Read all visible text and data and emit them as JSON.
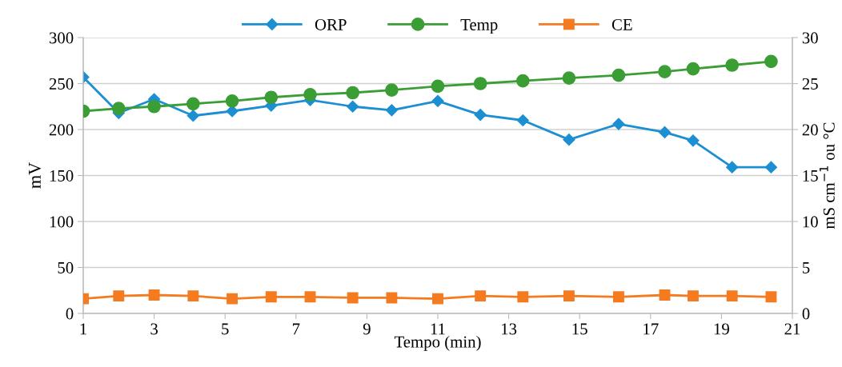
{
  "chart_data": {
    "type": "line",
    "xlabel": "Tempo (min)",
    "ylabel": "mV",
    "y2label": "mS cm$^{−1}$ ou °C",
    "x": [
      1,
      2,
      3,
      4.1,
      5.2,
      6.3,
      7.4,
      8.6,
      9.7,
      11,
      12.2,
      13.4,
      14.7,
      16.1,
      17.4,
      18.2,
      19.3,
      20.4
    ],
    "series": [
      {
        "name": "ORP",
        "color": "#1b8fd2",
        "marker": "diamond",
        "values": [
          257,
          218,
          233,
          215,
          220,
          226,
          232,
          225,
          221,
          231,
          216,
          210,
          189,
          206,
          197,
          188,
          159,
          159
        ]
      },
      {
        "name": "Temp",
        "color": "#3a9e35",
        "marker": "circle",
        "axis": "y2",
        "values": [
          22.0,
          22.3,
          22.5,
          22.8,
          23.1,
          23.5,
          23.8,
          24.0,
          24.3,
          24.7,
          25.0,
          25.3,
          25.6,
          25.9,
          26.3,
          26.6,
          27.0,
          27.4
        ]
      },
      {
        "name": "CE",
        "color": "#f47b20",
        "marker": "square",
        "axis": "y2",
        "values": [
          1.6,
          1.9,
          2.0,
          1.9,
          1.6,
          1.8,
          1.8,
          1.7,
          1.7,
          1.6,
          1.9,
          1.8,
          1.9,
          1.8,
          2.0,
          1.9,
          1.9,
          1.8
        ]
      }
    ],
    "xlim": [
      1,
      21
    ],
    "xticks": [
      1,
      3,
      5,
      7,
      9,
      11,
      13,
      15,
      17,
      19,
      21
    ],
    "ylim": [
      0,
      300
    ],
    "yticks": [
      0,
      50,
      100,
      150,
      200,
      250,
      300
    ],
    "y2lim": [
      0,
      30
    ],
    "y2ticks": [
      0,
      5,
      10,
      15,
      20,
      25,
      30
    ],
    "grid": "y",
    "legend": "top"
  }
}
